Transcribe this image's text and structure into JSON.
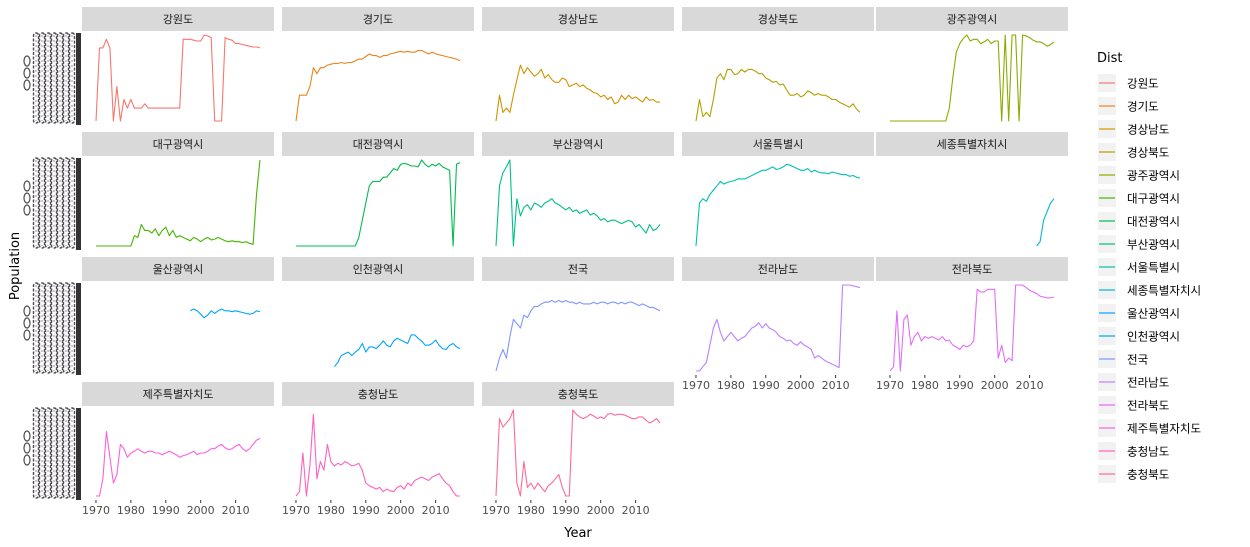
{
  "chart_data": {
    "type": "line",
    "title": "",
    "xlabel": "Year",
    "ylabel": "Population",
    "x": [
      1970,
      1971,
      1972,
      1973,
      1974,
      1975,
      1976,
      1977,
      1978,
      1979,
      1980,
      1981,
      1982,
      1983,
      1984,
      1985,
      1986,
      1987,
      1988,
      1989,
      1990,
      1991,
      1992,
      1993,
      1994,
      1995,
      1996,
      1997,
      1998,
      1999,
      2000,
      2001,
      2002,
      2003,
      2004,
      2005,
      2006,
      2007,
      2008,
      2009,
      2010,
      2011,
      2012,
      2013,
      2014,
      2015,
      2016,
      2017
    ],
    "x_ticks": [
      1970,
      1980,
      1990,
      2000,
      2010
    ],
    "xlim": [
      1966,
      2021
    ],
    "facet_layout": {
      "ncol": 5,
      "nrow": 4
    },
    "y_axis_note": "y tick labels are overplotted and illegible; values are relative (0 = panel bottom, 100 = panel top)",
    "ylim": [
      0,
      100
    ],
    "legend": {
      "title": "Dist",
      "position": "right"
    },
    "series": [
      {
        "name": "강원도",
        "color": "#F8766D",
        "values": [
          0,
          85,
          85,
          95,
          85,
          0,
          40,
          0,
          25,
          15,
          25,
          15,
          15,
          15,
          20,
          15,
          15,
          15,
          15,
          15,
          15,
          15,
          15,
          15,
          15,
          95,
          95,
          95,
          94,
          93,
          93,
          100,
          99,
          97,
          0,
          0,
          0,
          97,
          95,
          94,
          90,
          90,
          89,
          88,
          87,
          86,
          86,
          85
        ]
      },
      {
        "name": "경기도",
        "color": "#E7851E",
        "values": [
          0,
          30,
          30,
          30,
          40,
          62,
          55,
          62,
          62,
          65,
          66,
          67,
          67,
          68,
          67,
          68,
          68,
          70,
          72,
          72,
          75,
          78,
          76,
          76,
          74,
          76,
          76,
          78,
          79,
          80,
          81,
          80,
          81,
          80,
          80,
          82,
          82,
          80,
          78,
          80,
          78,
          77,
          76,
          75,
          74,
          73,
          72,
          70
        ]
      },
      {
        "name": "경상남도",
        "color": "#D09400",
        "values": [
          0,
          30,
          10,
          15,
          10,
          30,
          48,
          65,
          55,
          62,
          57,
          52,
          55,
          60,
          50,
          54,
          48,
          45,
          45,
          50,
          48,
          40,
          42,
          44,
          40,
          42,
          38,
          36,
          33,
          32,
          28,
          30,
          25,
          28,
          20,
          22,
          30,
          25,
          30,
          26,
          28,
          25,
          22,
          28,
          24,
          25,
          22,
          22
        ]
      },
      {
        "name": "경상북도",
        "color": "#B2A100",
        "values": [
          0,
          25,
          5,
          10,
          5,
          25,
          50,
          55,
          48,
          60,
          60,
          54,
          55,
          60,
          57,
          60,
          60,
          58,
          55,
          55,
          50,
          48,
          45,
          46,
          42,
          43,
          36,
          30,
          30,
          32,
          28,
          30,
          35,
          33,
          30,
          32,
          30,
          30,
          28,
          25,
          25,
          22,
          20,
          18,
          16,
          20,
          14,
          10
        ]
      },
      {
        "name": "광주광역시",
        "color": "#89AC00",
        "values": [
          0,
          0,
          0,
          0,
          0,
          0,
          0,
          0,
          0,
          0,
          0,
          0,
          0,
          0,
          0,
          0,
          0,
          15,
          50,
          80,
          90,
          96,
          100,
          93,
          95,
          95,
          90,
          92,
          95,
          90,
          93,
          93,
          0,
          100,
          0,
          100,
          100,
          0,
          100,
          99,
          97,
          94,
          92,
          92,
          90,
          87,
          89,
          92
        ]
      },
      {
        "name": "대구광역시",
        "color": "#45B500",
        "values": [
          0,
          0,
          0,
          0,
          0,
          0,
          0,
          0,
          0,
          0,
          0,
          12,
          10,
          25,
          18,
          18,
          15,
          20,
          12,
          18,
          22,
          12,
          18,
          10,
          12,
          10,
          8,
          6,
          10,
          8,
          5,
          8,
          10,
          7,
          8,
          10,
          8,
          6,
          5,
          6,
          5,
          5,
          4,
          5,
          3,
          2,
          60,
          100
        ]
      },
      {
        "name": "대전광역시",
        "color": "#00BC51",
        "values": [
          0,
          0,
          0,
          0,
          0,
          0,
          0,
          0,
          0,
          0,
          0,
          0,
          0,
          0,
          0,
          0,
          0,
          0,
          10,
          30,
          50,
          70,
          75,
          75,
          75,
          80,
          80,
          85,
          90,
          88,
          95,
          96,
          95,
          93,
          93,
          92,
          100,
          95,
          92,
          95,
          93,
          96,
          92,
          90,
          88,
          0,
          95,
          97
        ]
      },
      {
        "name": "부산광역시",
        "color": "#00C087",
        "values": [
          0,
          70,
          85,
          92,
          100,
          0,
          55,
          35,
          45,
          48,
          42,
          50,
          48,
          45,
          50,
          52,
          55,
          50,
          48,
          45,
          42,
          45,
          40,
          42,
          38,
          40,
          42,
          36,
          38,
          35,
          30,
          32,
          28,
          30,
          30,
          28,
          26,
          28,
          30,
          28,
          22,
          25,
          20,
          15,
          25,
          18,
          20,
          25
        ]
      },
      {
        "name": "서울특별시",
        "color": "#00C0B2",
        "values": [
          0,
          50,
          55,
          52,
          60,
          65,
          70,
          75,
          72,
          74,
          75,
          76,
          78,
          78,
          78,
          80,
          82,
          84,
          86,
          88,
          88,
          90,
          92,
          89,
          90,
          92,
          95,
          94,
          92,
          90,
          88,
          88,
          90,
          86,
          88,
          86,
          85,
          85,
          84,
          86,
          85,
          84,
          83,
          83,
          81,
          82,
          80,
          79
        ]
      },
      {
        "name": "세종특별자치시",
        "color": "#00B6D3",
        "values": [
          null,
          null,
          null,
          null,
          null,
          null,
          null,
          null,
          null,
          null,
          null,
          null,
          null,
          null,
          null,
          null,
          null,
          null,
          null,
          null,
          null,
          null,
          null,
          null,
          null,
          null,
          null,
          null,
          null,
          null,
          null,
          null,
          null,
          null,
          null,
          null,
          null,
          null,
          null,
          null,
          null,
          null,
          0,
          5,
          30,
          40,
          50,
          55
        ]
      },
      {
        "name": "울산광역시",
        "color": "#00A7FF",
        "values": [
          null,
          null,
          null,
          null,
          null,
          null,
          null,
          null,
          null,
          null,
          null,
          null,
          null,
          null,
          null,
          null,
          null,
          null,
          null,
          null,
          null,
          null,
          null,
          null,
          null,
          null,
          null,
          70,
          72,
          70,
          66,
          62,
          65,
          70,
          67,
          70,
          72,
          70,
          70,
          69,
          70,
          69,
          68,
          67,
          66,
          67,
          70,
          69
        ]
      },
      {
        "name": "인천광역시",
        "color": "#00A5FF",
        "values": [
          null,
          null,
          null,
          null,
          null,
          null,
          null,
          null,
          null,
          null,
          null,
          5,
          10,
          18,
          20,
          22,
          18,
          22,
          25,
          32,
          22,
          28,
          28,
          26,
          30,
          35,
          30,
          28,
          35,
          38,
          36,
          34,
          32,
          42,
          42,
          38,
          35,
          30,
          30,
          32,
          36,
          30,
          26,
          25,
          30,
          32,
          28,
          26
        ]
      },
      {
        "name": "전국",
        "color": "#7F96FF",
        "values": [
          0,
          15,
          25,
          15,
          40,
          60,
          55,
          50,
          65,
          62,
          70,
          75,
          75,
          78,
          80,
          80,
          82,
          80,
          82,
          80,
          82,
          80,
          80,
          78,
          80,
          78,
          78,
          78,
          80,
          78,
          80,
          80,
          78,
          80,
          80,
          78,
          80,
          78,
          80,
          80,
          78,
          76,
          78,
          76,
          74,
          74,
          72,
          70
        ]
      },
      {
        "name": "전라남도",
        "color": "#BC81FF",
        "values": [
          0,
          0,
          5,
          10,
          30,
          50,
          60,
          45,
          35,
          40,
          45,
          40,
          35,
          38,
          40,
          45,
          50,
          52,
          56,
          50,
          55,
          50,
          48,
          45,
          40,
          38,
          35,
          36,
          32,
          30,
          34,
          30,
          28,
          25,
          15,
          18,
          15,
          12,
          10,
          8,
          6,
          4,
          100,
          100,
          100,
          99,
          98,
          97
        ]
      },
      {
        "name": "전라북도",
        "color": "#E26EF7",
        "values": [
          0,
          5,
          70,
          0,
          60,
          65,
          30,
          40,
          45,
          35,
          40,
          38,
          40,
          38,
          36,
          40,
          35,
          36,
          30,
          28,
          25,
          30,
          28,
          30,
          35,
          95,
          92,
          92,
          95,
          95,
          95,
          15,
          30,
          10,
          15,
          12,
          100,
          100,
          100,
          97,
          94,
          92,
          90,
          87,
          86,
          85,
          85,
          86
        ]
      },
      {
        "name": "제주특별자치도",
        "color": "#F863DF",
        "values": [
          0,
          0,
          20,
          75,
          45,
          15,
          25,
          60,
          55,
          45,
          50,
          52,
          55,
          52,
          50,
          52,
          52,
          50,
          50,
          48,
          50,
          52,
          50,
          48,
          45,
          47,
          48,
          50,
          52,
          48,
          50,
          50,
          52,
          55,
          55,
          58,
          60,
          56,
          54,
          55,
          58,
          60,
          55,
          52,
          55,
          60,
          65,
          67
        ]
      },
      {
        "name": "충청남도",
        "color": "#FF62BF",
        "values": [
          0,
          5,
          50,
          0,
          35,
          95,
          20,
          40,
          30,
          60,
          40,
          35,
          38,
          36,
          40,
          38,
          35,
          36,
          38,
          30,
          15,
          12,
          10,
          8,
          10,
          5,
          8,
          6,
          5,
          10,
          12,
          8,
          15,
          12,
          18,
          20,
          22,
          20,
          18,
          22,
          24,
          26,
          20,
          15,
          12,
          5,
          0,
          0
        ]
      },
      {
        "name": "충청북도",
        "color": "#FF6A98",
        "values": [
          0,
          90,
          80,
          85,
          90,
          100,
          15,
          0,
          40,
          10,
          15,
          8,
          15,
          10,
          5,
          12,
          15,
          20,
          25,
          10,
          0,
          0,
          100,
          95,
          92,
          90,
          92,
          95,
          93,
          90,
          92,
          90,
          95,
          96,
          94,
          95,
          95,
          94,
          92,
          90,
          90,
          92,
          92,
          88,
          85,
          87,
          90,
          85
        ]
      }
    ]
  }
}
